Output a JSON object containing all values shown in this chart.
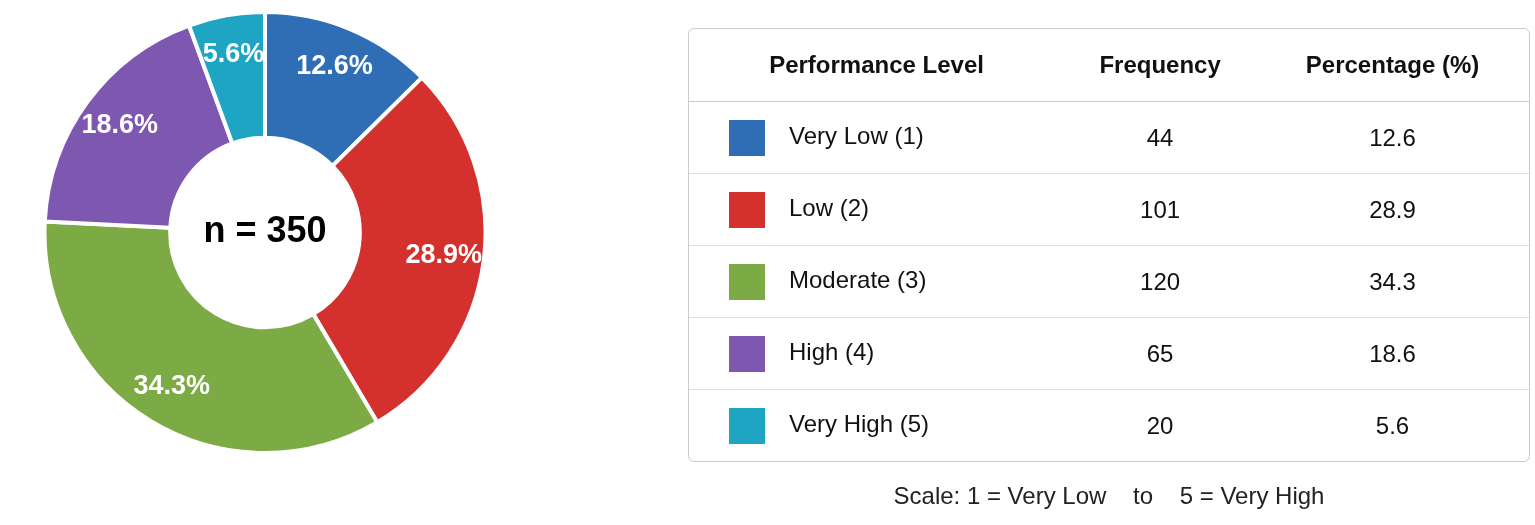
{
  "chart_data": [
    {
      "type": "donut",
      "categories": [
        null,
        null,
        null,
        null,
        null
      ],
      "values": [
        12.6,
        28.9,
        34.3,
        18.6,
        5.6
      ],
      "colors": [
        "#2f6db5",
        "#d3302e",
        "#7cab45",
        "#7e57b0",
        "#1fa5c4"
      ],
      "value_labels": [
        "12.6%",
        "28.9%",
        "34.3%",
        "18.6%",
        "5.6%"
      ],
      "annotations": [
        "n = 350"
      ],
      "legend": false
    },
    {
      "type": "other",
      "legend_title": "Performance Level",
      "categories": [
        "Very Low (1)",
        "Low (2)",
        "Moderate (3)",
        "High (4)",
        "Very High (5)"
      ],
      "colors": [
        "#2f6db5",
        "#d3302e",
        "#7cab45",
        "#7e57b0",
        "#1fa5c4"
      ],
      "series": [
        {
          "name": "Frequency",
          "values": [
            44,
            101,
            120,
            65,
            20
          ]
        },
        {
          "name": "Percentage (%)",
          "values": [
            12.6,
            28.9,
            34.3,
            18.6,
            5.6
          ]
        }
      ],
      "data_labels": true,
      "annotations": [
        "Scale: 1 = Very Low    to    5 = Very High"
      ]
    }
  ]
}
